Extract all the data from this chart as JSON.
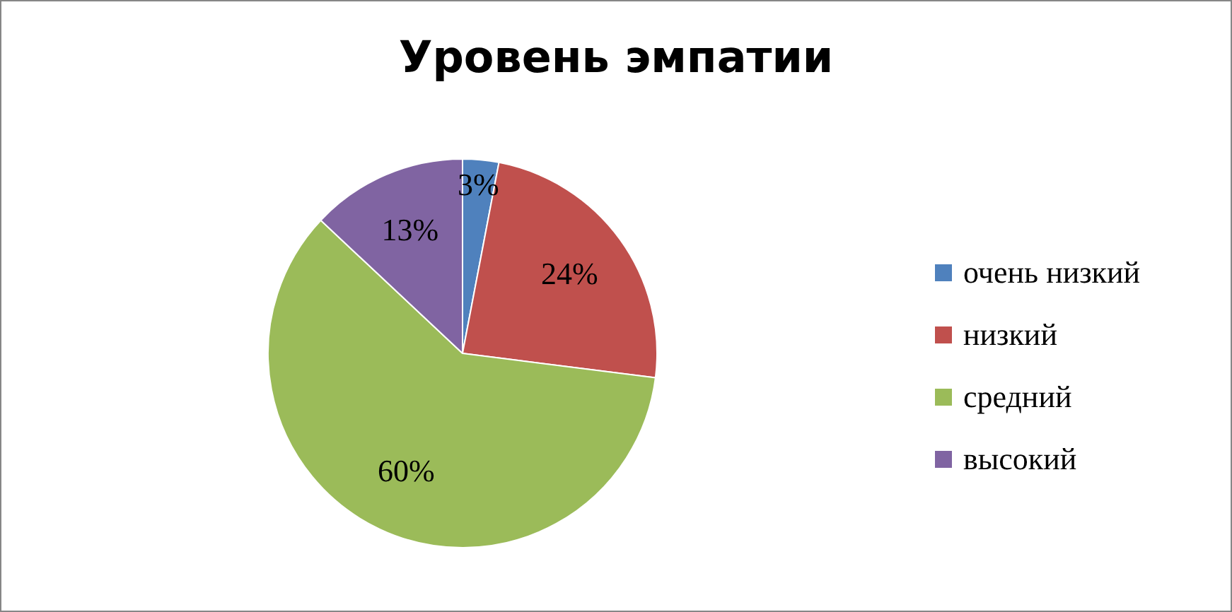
{
  "chart_data": {
    "type": "pie",
    "title": "Уровень эмпатии",
    "categories": [
      "очень низкий",
      "низкий",
      "средний",
      "высокий"
    ],
    "values": [
      3,
      24,
      60,
      13
    ],
    "colors": [
      "#4f81bd",
      "#c0504d",
      "#9bbb59",
      "#8064a2"
    ],
    "value_labels": [
      "3%",
      "24%",
      "60%",
      "13%"
    ],
    "legend": "right"
  }
}
